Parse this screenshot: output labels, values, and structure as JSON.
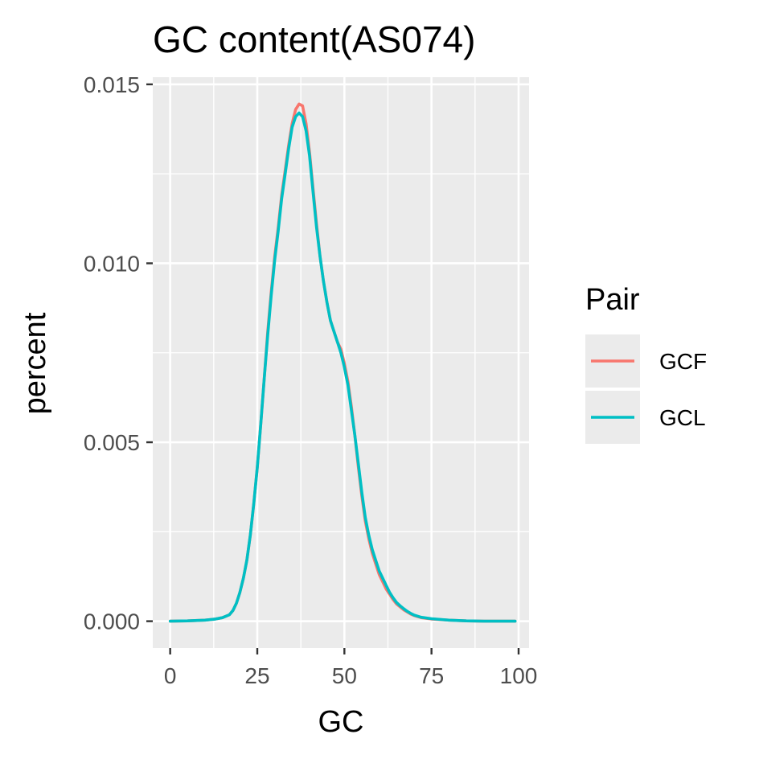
{
  "chart_data": {
    "type": "line",
    "title": "GC content(AS074)",
    "xlabel": "GC",
    "ylabel": "percent",
    "xlim": [
      -5,
      103
    ],
    "ylim": [
      -0.00075,
      0.0152
    ],
    "x_ticks": [
      0,
      25,
      50,
      75,
      100
    ],
    "y_ticks": [
      0.0,
      0.005,
      0.01,
      0.015
    ],
    "x_tick_labels": [
      "0",
      "25",
      "50",
      "75",
      "100"
    ],
    "y_tick_labels": [
      "0.000",
      "0.005",
      "0.010",
      "0.015"
    ],
    "grid": true,
    "legend": {
      "title": "Pair",
      "position": "right"
    },
    "x": [
      0,
      5,
      10,
      13,
      15,
      17,
      18,
      19,
      20,
      21,
      22,
      23,
      24,
      25,
      26,
      27,
      28,
      29,
      30,
      31,
      32,
      33,
      34,
      35,
      36,
      37,
      38,
      39,
      40,
      41,
      42,
      43,
      44,
      45,
      46,
      47,
      48,
      49,
      50,
      51,
      52,
      53,
      54,
      55,
      56,
      57,
      58,
      59,
      60,
      61,
      62,
      63,
      64,
      65,
      66,
      67,
      68,
      69,
      70,
      72,
      75,
      80,
      85,
      90,
      95,
      99
    ],
    "series": [
      {
        "name": "GCF",
        "color": "#F8766D",
        "values": [
          0.0,
          1e-05,
          3e-05,
          6e-05,
          0.0001,
          0.00018,
          0.0003,
          0.0005,
          0.0008,
          0.0012,
          0.0017,
          0.0024,
          0.0033,
          0.0043,
          0.0055,
          0.0068,
          0.0081,
          0.0092,
          0.0102,
          0.011,
          0.0119,
          0.0126,
          0.0133,
          0.0139,
          0.0143,
          0.01445,
          0.0144,
          0.0139,
          0.0131,
          0.0121,
          0.0111,
          0.0102,
          0.0095,
          0.0089,
          0.0084,
          0.0081,
          0.0078,
          0.0076,
          0.0072,
          0.0067,
          0.006,
          0.0052,
          0.0043,
          0.0035,
          0.0028,
          0.0023,
          0.0019,
          0.0016,
          0.0013,
          0.0011,
          0.0009,
          0.00075,
          0.0006,
          0.00048,
          0.0004,
          0.00032,
          0.00026,
          0.0002,
          0.00016,
          0.0001,
          6e-05,
          3e-05,
          1e-05,
          0.0,
          0.0,
          0.0
        ]
      },
      {
        "name": "GCL",
        "color": "#00BFC4",
        "values": [
          0.0,
          1e-05,
          3e-05,
          6e-05,
          0.0001,
          0.00018,
          0.0003,
          0.0005,
          0.0008,
          0.0012,
          0.0017,
          0.0024,
          0.0033,
          0.0043,
          0.0055,
          0.0068,
          0.008,
          0.0091,
          0.0101,
          0.0109,
          0.0118,
          0.0125,
          0.0132,
          0.0138,
          0.0141,
          0.0142,
          0.0141,
          0.0137,
          0.013,
          0.012,
          0.011,
          0.0102,
          0.0095,
          0.0089,
          0.0084,
          0.0081,
          0.0078,
          0.0075,
          0.0071,
          0.0066,
          0.0059,
          0.0052,
          0.0044,
          0.0036,
          0.0029,
          0.0024,
          0.002,
          0.0017,
          0.0014,
          0.0012,
          0.001,
          0.0008,
          0.00065,
          0.00052,
          0.00043,
          0.00035,
          0.00028,
          0.00022,
          0.00017,
          0.00011,
          7e-05,
          3e-05,
          1e-05,
          0.0,
          0.0,
          0.0
        ]
      }
    ]
  },
  "style": {
    "panel_background": "#EBEBEB",
    "grid_color": "#FFFFFF",
    "tick_color": "#333333"
  }
}
